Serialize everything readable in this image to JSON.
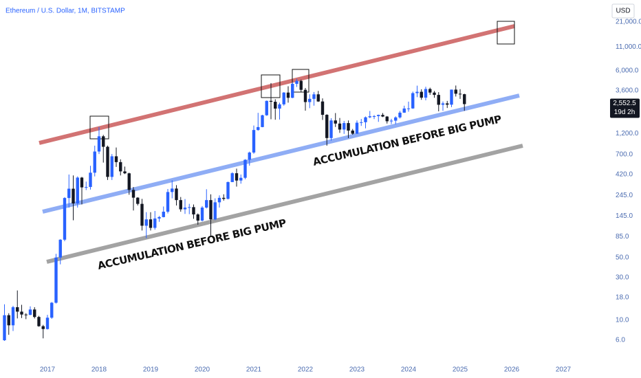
{
  "chart_data": {
    "type": "candlestick",
    "title": "Ethereum / U.S. Dollar, 1M, BITSTAMP",
    "currency": "USD",
    "up_color": "#2962ff",
    "down_color": "#131722",
    "log_scale": true,
    "grid": false,
    "x": [
      "2016-03",
      "2016-04",
      "2016-05",
      "2016-06",
      "2016-07",
      "2016-08",
      "2016-09",
      "2016-10",
      "2016-11",
      "2016-12",
      "2017-01",
      "2017-02",
      "2017-03",
      "2017-04",
      "2017-05",
      "2017-06",
      "2017-07",
      "2017-08",
      "2017-09",
      "2017-10",
      "2017-11",
      "2017-12",
      "2018-01",
      "2018-02",
      "2018-03",
      "2018-04",
      "2018-05",
      "2018-06",
      "2018-07",
      "2018-08",
      "2018-09",
      "2018-10",
      "2018-11",
      "2018-12",
      "2019-01",
      "2019-02",
      "2019-03",
      "2019-04",
      "2019-05",
      "2019-06",
      "2019-07",
      "2019-08",
      "2019-09",
      "2019-10",
      "2019-11",
      "2019-12",
      "2020-01",
      "2020-02",
      "2020-03",
      "2020-04",
      "2020-05",
      "2020-06",
      "2020-07",
      "2020-08",
      "2020-09",
      "2020-10",
      "2020-11",
      "2020-12",
      "2021-01",
      "2021-02",
      "2021-03",
      "2021-04",
      "2021-05",
      "2021-06",
      "2021-07",
      "2021-08",
      "2021-09",
      "2021-10",
      "2021-11",
      "2021-12",
      "2022-01",
      "2022-02",
      "2022-03",
      "2022-04",
      "2022-05",
      "2022-06",
      "2022-07",
      "2022-08",
      "2022-09",
      "2022-10",
      "2022-11",
      "2022-12",
      "2023-01",
      "2023-02",
      "2023-03",
      "2023-04",
      "2023-05",
      "2023-06",
      "2023-07",
      "2023-08",
      "2023-09",
      "2023-10",
      "2023-11",
      "2023-12",
      "2024-01",
      "2024-02",
      "2024-03",
      "2024-04",
      "2024-05",
      "2024-06",
      "2024-07",
      "2024-08",
      "2024-09",
      "2024-10",
      "2024-11",
      "2024-12",
      "2025-01",
      "2025-02"
    ],
    "open": [
      6,
      11.4,
      8.8,
      14,
      12.5,
      11.6,
      11.5,
      13.2,
      10.9,
      8.6,
      8,
      10.7,
      15.7,
      50,
      79,
      230,
      292,
      200,
      388,
      302,
      305,
      440,
      757,
      1118,
      855,
      395,
      670,
      577,
      455,
      433,
      283,
      232,
      198,
      113,
      133,
      107,
      136,
      141,
      162,
      268,
      293,
      218,
      172,
      180,
      182,
      151,
      129,
      180,
      218,
      133,
      206,
      231,
      225,
      346,
      434,
      360,
      386,
      613,
      738,
      1314,
      1417,
      1918,
      2773,
      2710,
      2275,
      2536,
      3430,
      3000,
      4290,
      4630,
      3680,
      2690,
      2920,
      3280,
      2730,
      1940,
      1070,
      1680,
      1550,
      1330,
      1570,
      1295,
      1196,
      1585,
      1605,
      1820,
      1870,
      1875,
      1935,
      1855,
      1645,
      1670,
      1815,
      2050,
      2280,
      2285,
      3380,
      3500,
      3010,
      3760,
      3430,
      3230,
      2510,
      2600,
      2515,
      3700,
      3330,
      3290
    ],
    "high": [
      15.1,
      12,
      14.5,
      21.5,
      14.9,
      12,
      14.3,
      14,
      11.2,
      8.9,
      11.5,
      16,
      55,
      80,
      235,
      420,
      410,
      400,
      395,
      350,
      525,
      880,
      1420,
      1160,
      880,
      710,
      840,
      620,
      515,
      440,
      305,
      235,
      225,
      160,
      160,
      165,
      145,
      185,
      290,
      362,
      320,
      236,
      224,
      198,
      195,
      155,
      187,
      288,
      253,
      228,
      246,
      253,
      350,
      445,
      488,
      420,
      622,
      755,
      1475,
      2040,
      1943,
      2800,
      4380,
      2890,
      2650,
      3470,
      4030,
      4460,
      4870,
      4780,
      3860,
      3280,
      3480,
      3580,
      2960,
      1970,
      1780,
      2030,
      1790,
      1660,
      1680,
      1350,
      1680,
      1745,
      1860,
      2140,
      1930,
      1950,
      2030,
      1880,
      1750,
      1865,
      2140,
      2450,
      2720,
      3520,
      4100,
      3730,
      3980,
      3890,
      3570,
      3470,
      2730,
      2770,
      3700,
      4110,
      3740,
      3330
    ],
    "low": [
      5.9,
      6.9,
      7.6,
      10.5,
      10.6,
      10.3,
      11.4,
      10.5,
      8.5,
      6.3,
      7.9,
      10.4,
      15.4,
      42,
      76,
      180,
      130,
      180,
      195,
      282,
      285,
      400,
      710,
      570,
      365,
      365,
      510,
      410,
      425,
      250,
      167,
      190,
      100,
      82,
      100,
      102,
      125,
      140,
      155,
      228,
      190,
      162,
      153,
      152,
      135,
      116,
      126,
      176,
      86,
      130,
      180,
      215,
      222,
      346,
      308,
      332,
      372,
      527,
      714,
      1290,
      1410,
      1890,
      1730,
      1710,
      1720,
      2450,
      2650,
      2970,
      3960,
      3500,
      2160,
      2300,
      2450,
      2700,
      1700,
      880,
      1000,
      1420,
      1220,
      1190,
      1070,
      1165,
      1190,
      1460,
      1370,
      1780,
      1740,
      1620,
      1830,
      1550,
      1530,
      1520,
      1765,
      2040,
      2100,
      2260,
      3050,
      2850,
      2810,
      3240,
      3000,
      2120,
      2150,
      2310,
      2360,
      3100,
      2920,
      2150
    ],
    "close": [
      11.4,
      8.8,
      14,
      12.5,
      11.6,
      11.5,
      13.2,
      10.9,
      8.6,
      8,
      10.7,
      15.7,
      50,
      79,
      230,
      292,
      200,
      388,
      302,
      305,
      440,
      757,
      1118,
      855,
      395,
      670,
      577,
      455,
      433,
      283,
      232,
      198,
      113,
      133,
      107,
      136,
      141,
      162,
      268,
      293,
      218,
      172,
      180,
      182,
      151,
      129,
      180,
      218,
      133,
      206,
      231,
      225,
      346,
      434,
      360,
      386,
      613,
      738,
      1314,
      1417,
      1918,
      2773,
      2710,
      2275,
      2536,
      3430,
      3000,
      4290,
      4630,
      3680,
      2690,
      2920,
      3280,
      2730,
      1940,
      1070,
      1680,
      1550,
      1330,
      1570,
      1295,
      1196,
      1585,
      1605,
      1820,
      1870,
      1875,
      1935,
      1855,
      1645,
      1670,
      1815,
      2050,
      2280,
      2285,
      3380,
      3500,
      3010,
      3760,
      3430,
      3230,
      2510,
      2600,
      2515,
      3700,
      3330,
      3290,
      2552.5
    ],
    "xlim": [
      2016.08,
      2027.88
    ],
    "xticks": [
      2017,
      2018,
      2019,
      2020,
      2021,
      2022,
      2023,
      2024,
      2025,
      2026,
      2027
    ],
    "ylim": [
      3.36,
      36800
    ],
    "yticks": [
      {
        "value": 21000,
        "label": "21,000.0"
      },
      {
        "value": 11000,
        "label": "11,000.0"
      },
      {
        "value": 6000,
        "label": "6,000.0"
      },
      {
        "value": 3600,
        "label": "3,600.0"
      },
      {
        "value": 1200,
        "label": "1,200.0"
      },
      {
        "value": 700,
        "label": "700.0"
      },
      {
        "value": 420,
        "label": "420.0"
      },
      {
        "value": 245,
        "label": "245.0"
      },
      {
        "value": 145,
        "label": "145.0"
      },
      {
        "value": 85,
        "label": "85.0"
      },
      {
        "value": 50,
        "label": "50.0"
      },
      {
        "value": 30,
        "label": "30.0"
      },
      {
        "value": 18,
        "label": "18.0"
      },
      {
        "value": 10,
        "label": "10.0"
      },
      {
        "value": 6,
        "label": "6.0"
      }
    ],
    "price_tag": {
      "value": 2552.5,
      "label": "2,552.5"
    },
    "countdown": "19d 2h",
    "annotations": [
      "ACCUMULATION BEFORE BIG PUMP",
      "ACCUMULATION BEFORE BIG PUMP"
    ]
  }
}
